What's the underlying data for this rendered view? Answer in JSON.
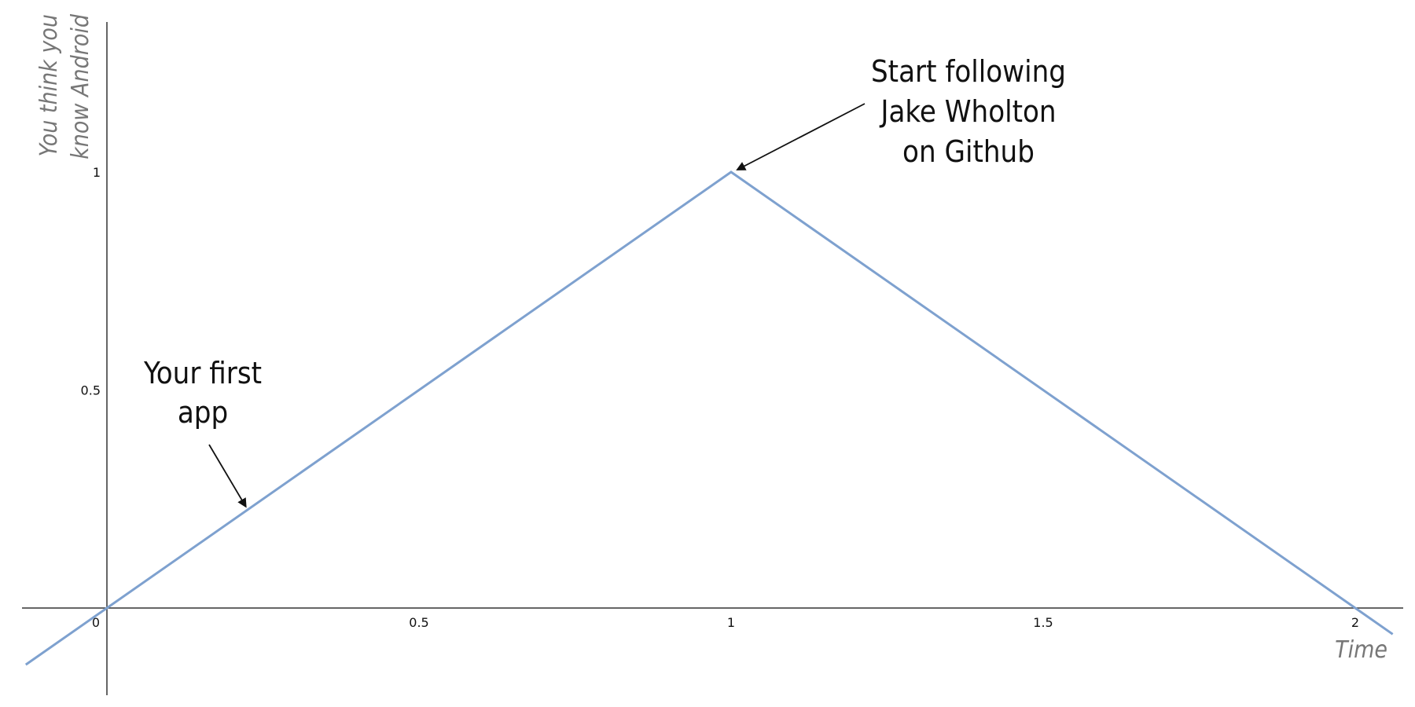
{
  "chart_data": {
    "type": "line",
    "title": "",
    "xlabel": "Time",
    "ylabel_lines": [
      "You think you",
      "know Android"
    ],
    "xlim": [
      -0.14,
      2.1
    ],
    "ylim": [
      -0.2,
      1.28
    ],
    "x_ticks": [
      {
        "value": 0,
        "label": "0"
      },
      {
        "value": 0.5,
        "label": "0.5"
      },
      {
        "value": 1,
        "label": "1"
      },
      {
        "value": 1.5,
        "label": "1.5"
      },
      {
        "value": 2,
        "label": "2"
      }
    ],
    "y_ticks": [
      {
        "value": 0.5,
        "label": "0.5"
      },
      {
        "value": 1,
        "label": "1"
      }
    ],
    "grid": false,
    "series": [
      {
        "color": "#7ea1cf",
        "points": [
          {
            "x": -0.13,
            "y": -0.13
          },
          {
            "x": 0,
            "y": 0
          },
          {
            "x": 1,
            "y": 1
          },
          {
            "x": 2,
            "y": 0
          },
          {
            "x": 2.06,
            "y": -0.06
          }
        ]
      }
    ],
    "annotations": [
      {
        "lines": [
          "Your first",
          "app"
        ],
        "target": {
          "x": 0.23,
          "y": 0.24
        }
      },
      {
        "lines": [
          "Start following",
          "Jake Wholton",
          "on Github"
        ],
        "target": {
          "x": 1,
          "y": 1
        }
      }
    ]
  }
}
